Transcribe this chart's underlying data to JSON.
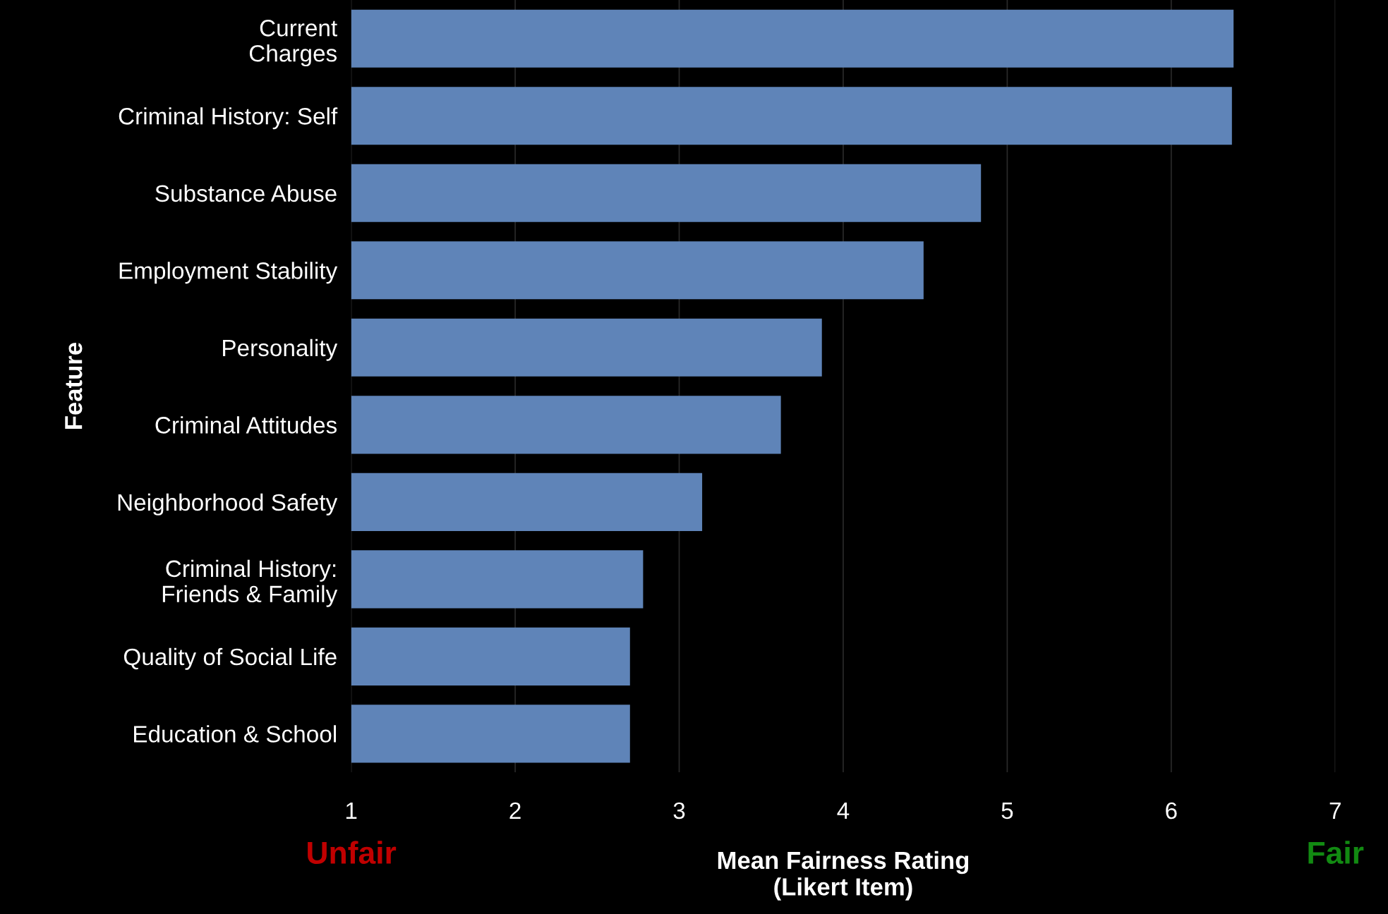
{
  "chart_data": {
    "type": "bar",
    "orientation": "horizontal",
    "xlabel": "Mean Fairness Rating\n(Likert Item)",
    "ylabel": "Feature",
    "categories": [
      "Current\nCharges",
      "Criminal History: Self",
      "Substance Abuse",
      "Employment Stability",
      "Personality",
      "Criminal Attitudes",
      "Neighborhood Safety",
      "Criminal History:\nFriends & Family",
      "Quality of Social Life",
      "Education & School"
    ],
    "values": [
      6.38,
      6.37,
      4.84,
      4.49,
      3.87,
      3.62,
      3.14,
      2.78,
      2.7,
      2.7
    ],
    "color": "#5f84b8",
    "xlim": [
      1,
      7
    ],
    "xticks": [
      1,
      2,
      3,
      4,
      5,
      6,
      7
    ],
    "grid": "x",
    "annotations": [
      "Unfair",
      "Fair"
    ]
  }
}
